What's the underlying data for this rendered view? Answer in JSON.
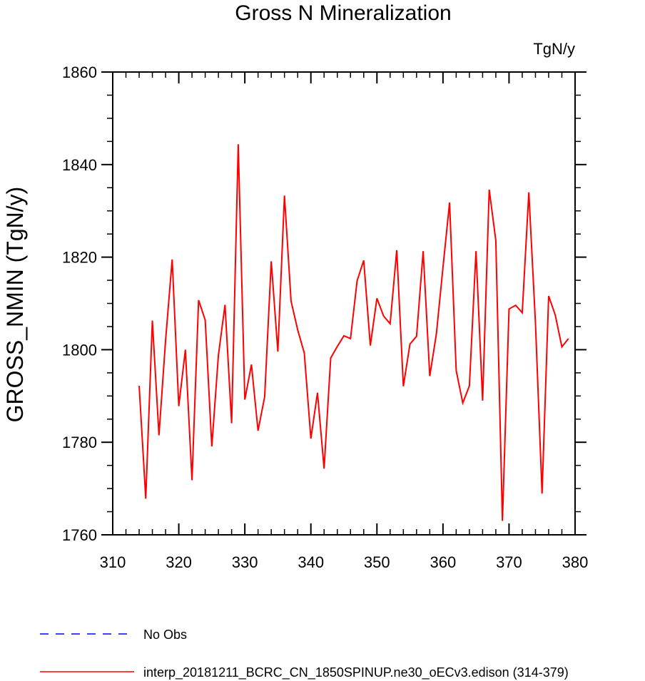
{
  "chart_data": {
    "type": "line",
    "title": "Gross N Mineralization",
    "units_label": "TgN/y",
    "xlabel": "",
    "ylabel": "GROSS_NMIN  (TgN/y)",
    "xlim": [
      310,
      380
    ],
    "ylim": [
      1760,
      1860
    ],
    "x_ticks": [
      310,
      320,
      330,
      340,
      350,
      360,
      370,
      380
    ],
    "y_ticks": [
      1760,
      1780,
      1800,
      1820,
      1840,
      1860
    ],
    "grid": false,
    "legend_placement": "bottom",
    "series": [
      {
        "name": "interp_20181211_BCRC_CN_1850SPINUP.ne30_oECv3.edison (314-379)",
        "color": "#ff0000",
        "dash": "solid",
        "x": [
          314,
          315,
          316,
          317,
          318,
          319,
          320,
          321,
          322,
          323,
          324,
          325,
          326,
          327,
          328,
          329,
          330,
          331,
          332,
          333,
          334,
          335,
          336,
          337,
          338,
          339,
          340,
          341,
          342,
          343,
          344,
          345,
          346,
          347,
          348,
          349,
          350,
          351,
          352,
          353,
          354,
          355,
          356,
          357,
          358,
          359,
          360,
          361,
          362,
          363,
          364,
          365,
          366,
          367,
          368,
          369,
          370,
          371,
          372,
          373,
          374,
          375,
          376,
          377,
          378,
          379
        ],
        "values": [
          1792.2,
          1767.8,
          1806.3,
          1781.5,
          1802.0,
          1819.5,
          1787.8,
          1800.0,
          1771.8,
          1810.7,
          1806.4,
          1779.1,
          1798.8,
          1809.7,
          1784.1,
          1844.4,
          1789.2,
          1796.8,
          1782.5,
          1789.8,
          1819.1,
          1799.6,
          1833.3,
          1810.5,
          1804.3,
          1799.3,
          1780.8,
          1790.7,
          1774.3,
          1798.2,
          1800.7,
          1803.0,
          1802.4,
          1814.9,
          1819.3,
          1800.9,
          1811.1,
          1807.3,
          1805.6,
          1821.5,
          1792.1,
          1801.2,
          1802.9,
          1821.3,
          1794.3,
          1803.4,
          1817.8,
          1831.8,
          1795.5,
          1788.5,
          1792.2,
          1821.3,
          1789.0,
          1834.6,
          1823.6,
          1763.0,
          1808.8,
          1809.6,
          1808.0,
          1834.0,
          1805.8,
          1768.9,
          1811.6,
          1807.5,
          1800.6,
          1802.4
        ]
      }
    ],
    "legend": [
      {
        "label": "No Obs",
        "color": "#0000ff",
        "dash": "dashed"
      },
      {
        "label": "interp_20181211_BCRC_CN_1850SPINUP.ne30_oECv3.edison (314-379)",
        "color": "#ff0000",
        "dash": "solid"
      }
    ]
  }
}
